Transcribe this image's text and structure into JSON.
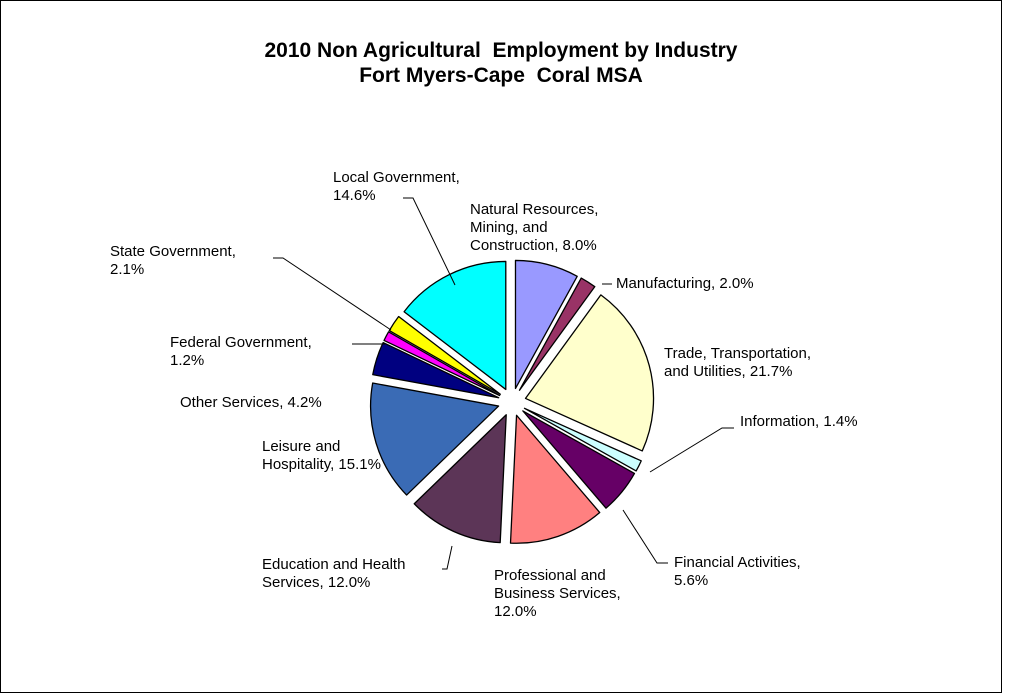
{
  "chart_data": {
    "type": "pie",
    "title": "2010 Non Agricultural  Employment by Industry",
    "subtitle": "Fort Myers-Cape  Coral MSA",
    "start_angle_deg": 0,
    "direction": "clockwise",
    "exploded": true,
    "slices": [
      {
        "label_lines": [
          "Natural Resources,",
          "Mining, and",
          "Construction, 8.0%"
        ],
        "value": 8.0,
        "color": "#9999FF"
      },
      {
        "label_lines": [
          "Manufacturing, 2.0%"
        ],
        "value": 2.0,
        "color": "#993366"
      },
      {
        "label_lines": [
          "Trade, Transportation,",
          "and Utilities, 21.7%"
        ],
        "value": 21.7,
        "color": "#FFFFCC"
      },
      {
        "label_lines": [
          "Information, 1.4%"
        ],
        "value": 1.4,
        "color": "#CCFFFF"
      },
      {
        "label_lines": [
          "Financial Activities,",
          "5.6%"
        ],
        "value": 5.6,
        "color": "#660066"
      },
      {
        "label_lines": [
          "Professional and",
          "Business Services,",
          "12.0%"
        ],
        "value": 12.0,
        "color": "#FF8080"
      },
      {
        "label_lines": [
          "Education and Health",
          "Services, 12.0%"
        ],
        "value": 12.0,
        "color": "#5C3557"
      },
      {
        "label_lines": [
          "Leisure and",
          "Hospitality, 15.1%"
        ],
        "value": 15.1,
        "color": "#3A6BB5"
      },
      {
        "label_lines": [
          "Other Services, 4.2%"
        ],
        "value": 4.2,
        "color": "#000080"
      },
      {
        "label_lines": [
          "Federal Government,",
          "1.2%"
        ],
        "value": 1.2,
        "color": "#FF00FF"
      },
      {
        "label_lines": [
          "State Government,",
          "2.1%"
        ],
        "value": 2.1,
        "color": "#FFFF00"
      },
      {
        "label_lines": [
          "Local Government,",
          "14.6%"
        ],
        "value": 14.6,
        "color": "#00FFFF"
      }
    ]
  }
}
